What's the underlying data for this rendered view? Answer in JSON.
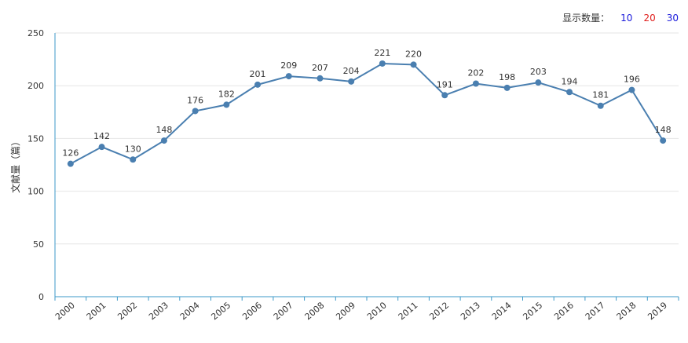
{
  "count_selector": {
    "label": "显示数量：",
    "options": [
      {
        "label": "10",
        "color": "#1a1adb"
      },
      {
        "label": "20",
        "color": "#e0201e"
      },
      {
        "label": "30",
        "color": "#1a1adb"
      }
    ]
  },
  "chart_data": {
    "type": "line",
    "title": "",
    "xlabel": "",
    "ylabel": "文献量（篇）",
    "categories": [
      "2000",
      "2001",
      "2002",
      "2003",
      "2004",
      "2005",
      "2006",
      "2007",
      "2008",
      "2009",
      "2010",
      "2011",
      "2012",
      "2013",
      "2014",
      "2015",
      "2016",
      "2017",
      "2018",
      "2019"
    ],
    "series": [
      {
        "name": "文献量",
        "values": [
          126,
          142,
          130,
          148,
          176,
          182,
          201,
          209,
          207,
          204,
          221,
          220,
          191,
          202,
          198,
          203,
          194,
          181,
          196,
          148
        ]
      }
    ],
    "ylim": [
      0,
      250
    ],
    "yticks": [
      0,
      50,
      100,
      150,
      200,
      250
    ],
    "grid": true,
    "line_color": "#4a7fb0",
    "axis_color": "#3d9ac9"
  }
}
